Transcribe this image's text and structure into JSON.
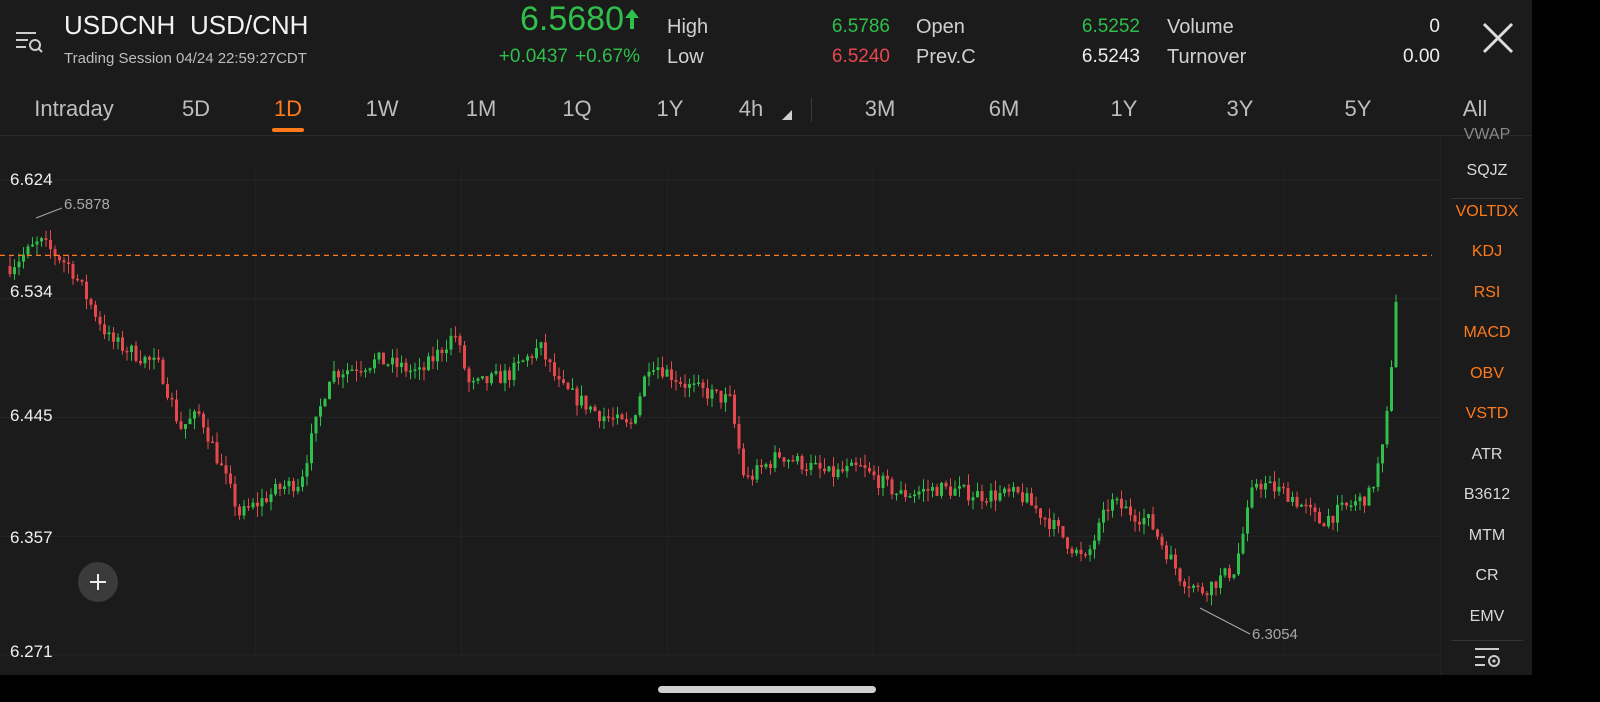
{
  "header": {
    "symbol": "USDCNH",
    "pair": "USD/CNH",
    "session": "Trading Session  04/24 22:59:27CDT",
    "price": "6.5680",
    "change": "+0.0437",
    "change_pct": "+0.67%",
    "high_label": "High",
    "high_value": "6.5786",
    "low_label": "Low",
    "low_value": "6.5240",
    "open_label": "Open",
    "open_value": "6.5252",
    "prevc_label": "Prev.C",
    "prevc_value": "6.5243",
    "volume_label": "Volume",
    "volume_value": "0",
    "turnover_label": "Turnover",
    "turnover_value": "0.00"
  },
  "tabs": [
    "Intraday",
    "5D",
    "1D",
    "1W",
    "1M",
    "1Q",
    "1Y",
    "4h",
    "3M",
    "6M",
    "1Y",
    "3Y",
    "5Y",
    "All"
  ],
  "active_tab": "1D",
  "chart": {
    "y_labels": [
      "6.624",
      "6.534",
      "6.445",
      "6.357",
      "6.271"
    ],
    "high_marker": "6.5878",
    "low_marker": "6.3054",
    "reference_price": 6.568
  },
  "indicators": {
    "partial_top": "VWAP",
    "items": [
      "SQJZ",
      "VOLTDX",
      "KDJ",
      "RSI",
      "MACD",
      "OBV",
      "VSTD",
      "ATR",
      "B3612",
      "MTM",
      "CR",
      "EMV"
    ],
    "active": [
      "VOLTDX",
      "KDJ",
      "RSI",
      "MACD",
      "OBV",
      "VSTD"
    ]
  },
  "colors": {
    "up": "#2fbf4a",
    "down": "#e5484d",
    "accent": "#ff7a1a",
    "background": "#1b1b1b"
  },
  "icons": {
    "menu": "menu-search-icon",
    "close": "close-icon",
    "add": "plus-icon",
    "settings": "indicator-settings-icon"
  }
}
